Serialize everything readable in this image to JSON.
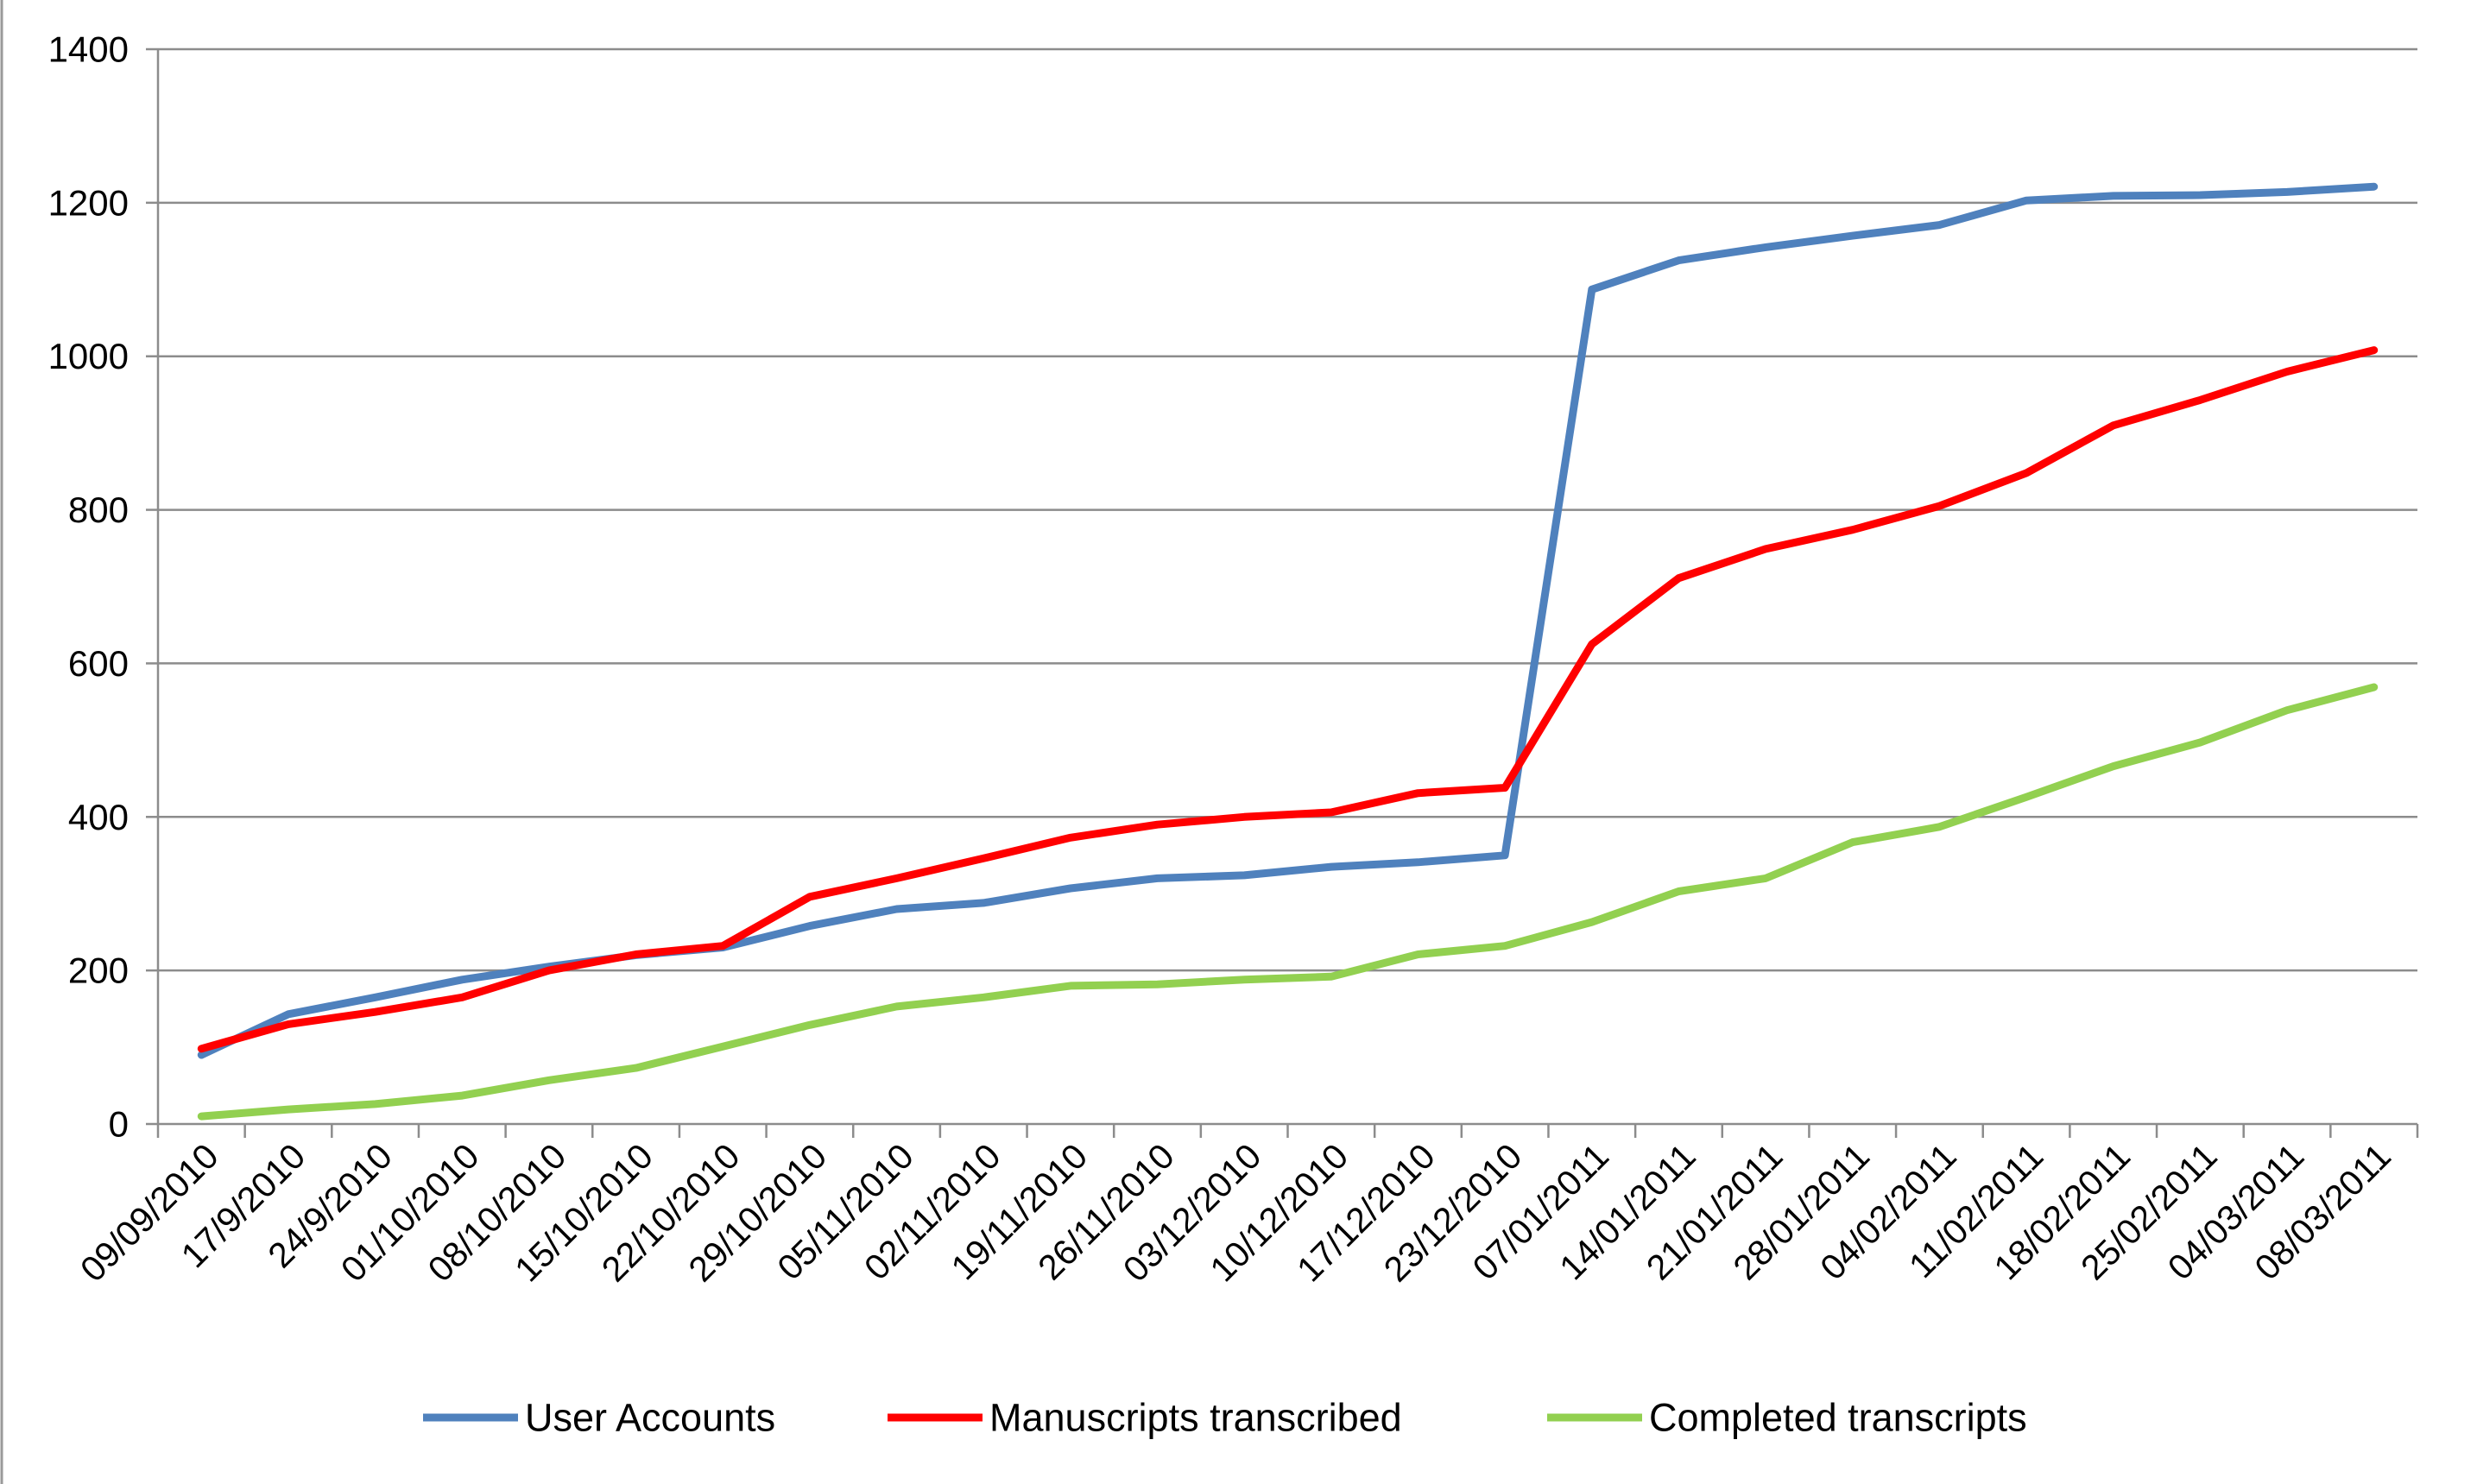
{
  "chart_data": {
    "type": "line",
    "title": "",
    "xlabel": "",
    "ylabel": "",
    "ylim": [
      0,
      1400
    ],
    "y_ticks": [
      "0",
      "200",
      "400",
      "600",
      "800",
      "1000",
      "1200",
      "1400"
    ],
    "grid": true,
    "legend_position": "bottom",
    "categories": [
      "09/09/2010",
      "17/9/2010",
      "24/9/2010",
      "01/10/2010",
      "08/10/2010",
      "15/10/2010",
      "22/10/2010",
      "29/10/2010",
      "05/11/2010",
      "02/11/2010",
      "19/11/2010",
      "26/11/2010",
      "03/12/2010",
      "10/12/2010",
      "17/12/2010",
      "23/12/2010",
      "07/01/2011",
      "14/01/2011",
      "21/01/2011",
      "28/01/2011",
      "04/02/2011",
      "11/02/2011",
      "18/02/2011",
      "25/02/2011",
      "04/03/2011",
      "08/03/2011"
    ],
    "series": [
      {
        "name": "User Accounts",
        "color": "#4f81bd",
        "values": [
          90,
          143,
          165,
          188,
          205,
          220,
          230,
          258,
          280,
          288,
          307,
          320,
          324,
          335,
          341,
          350,
          1087,
          1125,
          1142,
          1157,
          1171,
          1203,
          1209,
          1210,
          1214,
          1221
        ]
      },
      {
        "name": "Manuscripts transcribed",
        "color": "#ff0000",
        "values": [
          98,
          130,
          146,
          165,
          200,
          221,
          232,
          296,
          320,
          346,
          373,
          390,
          400,
          406,
          431,
          438,
          625,
          711,
          749,
          774,
          805,
          848,
          910,
          943,
          980,
          1008
        ]
      },
      {
        "name": "Completed transcripts",
        "color": "#92d050",
        "values": [
          10,
          19,
          26,
          37,
          57,
          73,
          101,
          129,
          153,
          165,
          180,
          182,
          188,
          192,
          221,
          232,
          263,
          303,
          320,
          367,
          387,
          426,
          466,
          497,
          539,
          569
        ]
      }
    ]
  }
}
